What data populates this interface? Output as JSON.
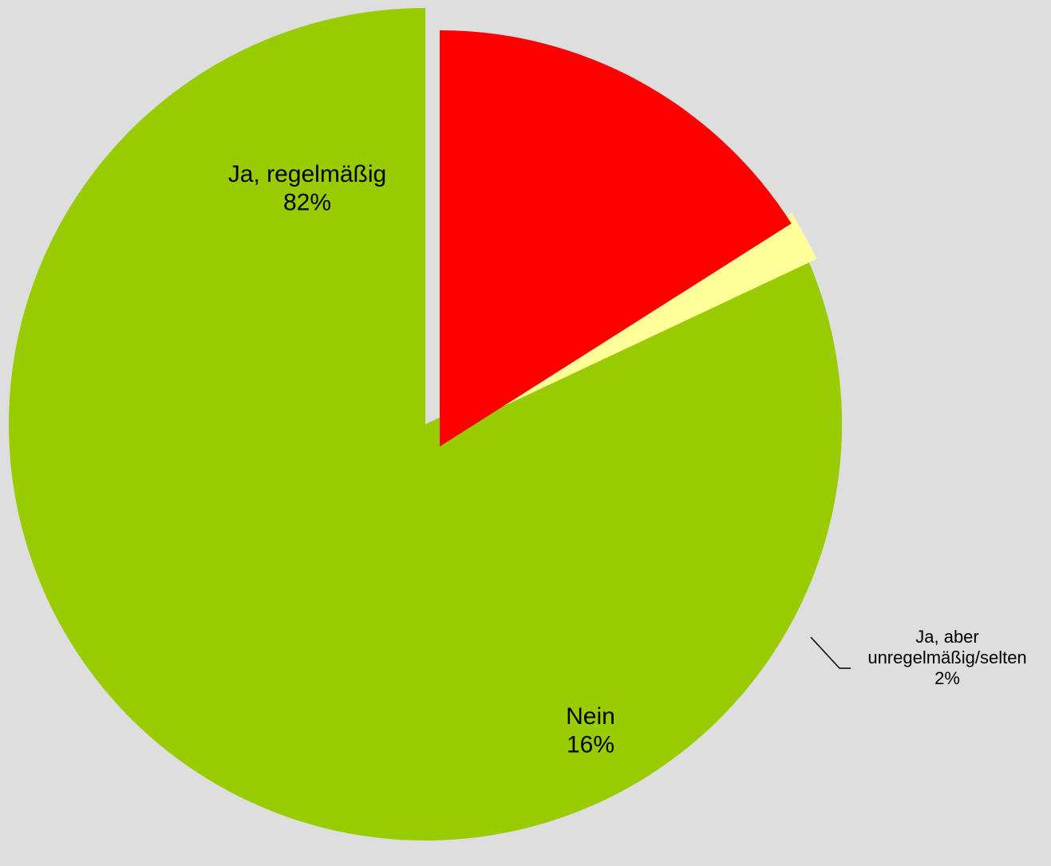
{
  "chart_data": {
    "type": "pie",
    "title": "",
    "slices": [
      {
        "label_lines": [
          "Ja, regelmäßig"
        ],
        "value": 82,
        "value_label": "82%",
        "color": "#99cc00",
        "exploded": false
      },
      {
        "label_lines": [
          "Ja, aber",
          "unregelmäßig/selten"
        ],
        "value": 2,
        "value_label": "2%",
        "color": "#ffff99",
        "exploded": true
      },
      {
        "label_lines": [
          "Nein"
        ],
        "value": 16,
        "value_label": "16%",
        "color": "#ff0000",
        "exploded": true
      }
    ],
    "start_angle": "12 o'clock",
    "direction": "counterclockwise",
    "background_color": "#dedede",
    "legend": "none"
  }
}
